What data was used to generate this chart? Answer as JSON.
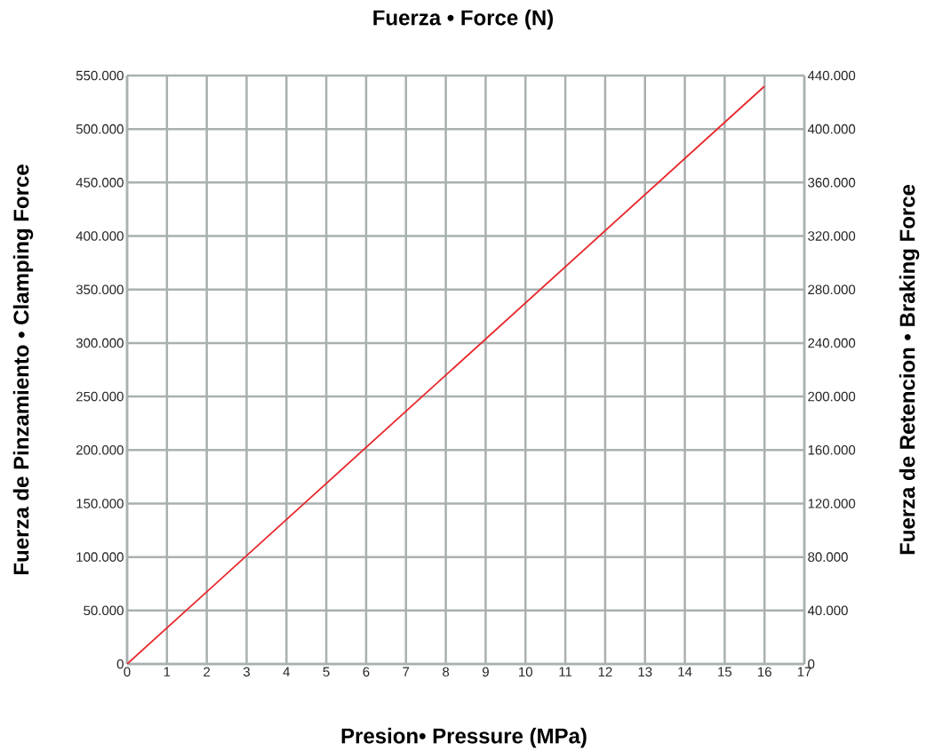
{
  "chart_data": {
    "type": "line",
    "title": "Fuerza • Force (N)",
    "xlabel": "Presion•  Pressure (MPa)",
    "ylabel": "Fuerza de Pinzamiento  •  Clamping Force",
    "y2label": "Fuerza de Retencion  •  Braking Force",
    "x": [
      0,
      16
    ],
    "series": [
      {
        "color": "#e8262a",
        "values": [
          0,
          540000
        ]
      }
    ],
    "xlim": [
      0,
      17
    ],
    "xticks": [
      0,
      1,
      2,
      3,
      4,
      5,
      6,
      7,
      8,
      9,
      10,
      11,
      12,
      13,
      14,
      15,
      16,
      17
    ],
    "ylim": [
      0,
      550000
    ],
    "yticks": [
      0,
      {
        "value": 50000,
        "label": "50.000"
      },
      {
        "value": 100000,
        "label": "100.000"
      },
      {
        "value": 150000,
        "label": "150.000"
      },
      {
        "value": 200000,
        "label": "200.000"
      },
      {
        "value": 250000,
        "label": "250.000"
      },
      {
        "value": 300000,
        "label": "300.000"
      },
      {
        "value": 350000,
        "label": "350.000"
      },
      {
        "value": 400000,
        "label": "400.000"
      },
      {
        "value": 450000,
        "label": "450.000"
      },
      {
        "value": 500000,
        "label": "500.000"
      },
      {
        "value": 550000,
        "label": "550.000"
      }
    ],
    "y2lim": [
      0,
      440000
    ],
    "y2ticks": [
      0,
      {
        "value": 40000,
        "label": "40.000"
      },
      {
        "value": 80000,
        "label": "80.000"
      },
      {
        "value": 120000,
        "label": "120.000"
      },
      {
        "value": 160000,
        "label": "160.000"
      },
      {
        "value": 200000,
        "label": "200.000"
      },
      {
        "value": 240000,
        "label": "240.000"
      },
      {
        "value": 280000,
        "label": "280.000"
      },
      {
        "value": 320000,
        "label": "320.000"
      },
      {
        "value": 360000,
        "label": "360.000"
      },
      {
        "value": 400000,
        "label": "400.000"
      },
      {
        "value": 440000,
        "label": "440.000"
      }
    ],
    "grid": true
  }
}
